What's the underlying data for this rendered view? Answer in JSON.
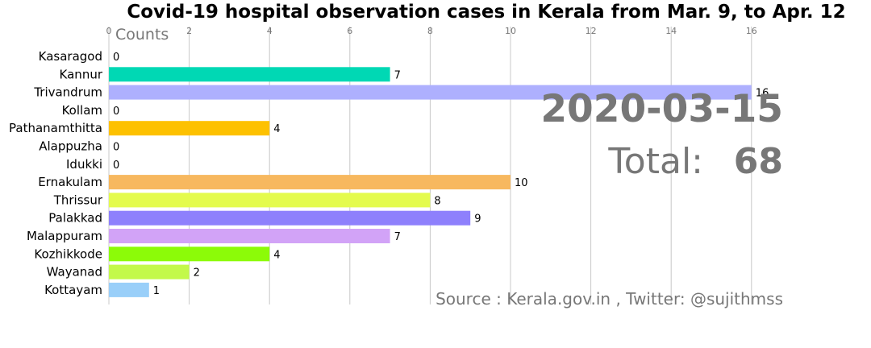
{
  "chart_data": {
    "type": "bar",
    "orientation": "horizontal",
    "title": "Covid-19 hospital observation cases in Kerala from Mar. 9, to Apr. 12",
    "xlabel": "Counts",
    "ylabel": "",
    "xlim": [
      0,
      16.8
    ],
    "xticks": [
      0,
      2,
      4,
      6,
      8,
      10,
      12,
      14,
      16
    ],
    "grid": true,
    "categories": [
      "Kasaragod",
      "Kannur",
      "Trivandrum",
      "Kollam",
      "Pathanamthitta",
      "Alappuzha",
      "Idukki",
      "Ernakulam",
      "Thrissur",
      "Palakkad",
      "Malappuram",
      "Kozhikkode",
      "Wayanad",
      "Kottayam"
    ],
    "values": [
      0,
      7,
      16,
      0,
      4,
      0,
      0,
      10,
      8,
      9,
      7,
      4,
      2,
      1
    ],
    "colors": [
      "#b0f060",
      "#00d8b4",
      "#aeb0fe",
      "#f2a0a0",
      "#fdc100",
      "#ff6f60",
      "#9fd0a0",
      "#f7b85f",
      "#e4fb4d",
      "#8e80fc",
      "#d2a3f7",
      "#8cfb08",
      "#c3f94a",
      "#99cff9"
    ]
  },
  "date_label": "2020-03-15",
  "total_label": "Total:",
  "total_value": "68",
  "source_text": "Source : Kerala.gov.in , Twitter: @sujithmss"
}
